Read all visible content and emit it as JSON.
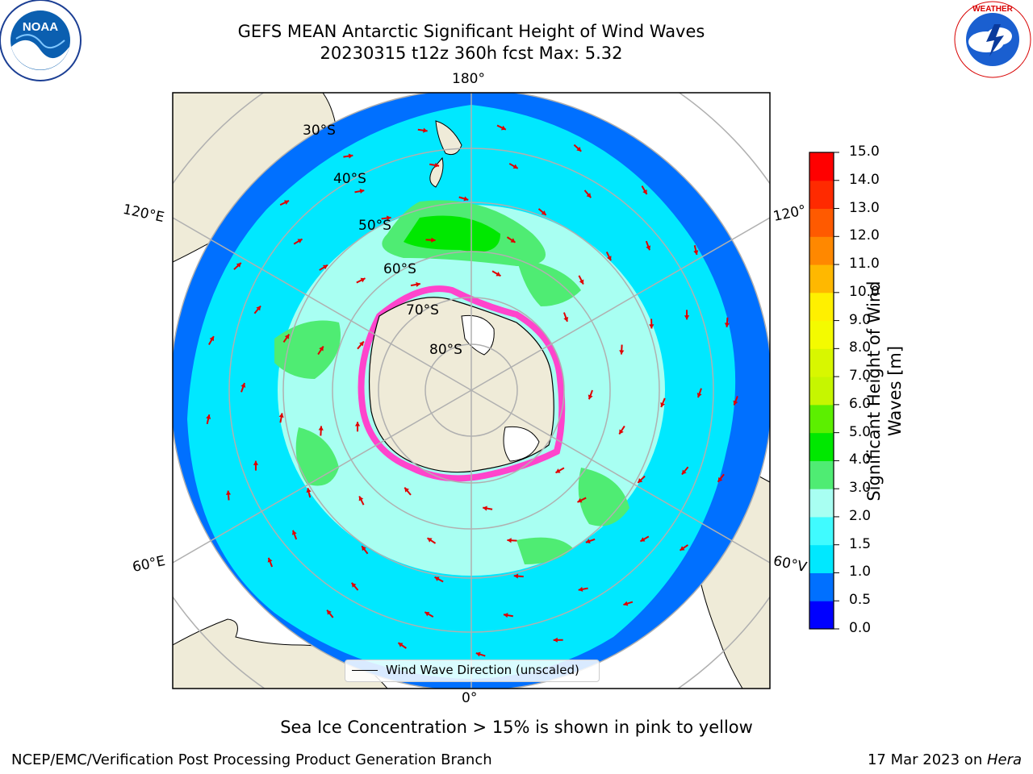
{
  "title": {
    "line1": "GEFS MEAN Antarctic Significant Height of Wind Waves",
    "line2": "20230315 t12z 360h fcst   Max: 5.32"
  },
  "logos": {
    "left": {
      "name": "noaa-logo",
      "text": "NOAA"
    },
    "right": {
      "name": "national-weather-service-logo",
      "text": "NATIONAL WEATHER SERVICE"
    }
  },
  "map": {
    "projection": "south-polar-stereographic",
    "longitude_labels": {
      "top": "180°",
      "bottom": "0°",
      "upper_left": "120°E",
      "upper_right": "120°",
      "lower_left": "60°E",
      "lower_right": "60°V"
    },
    "latitude_labels": [
      "30°S",
      "40°S",
      "50°S",
      "60°S",
      "70°S",
      "80°S"
    ],
    "legend": "Wind Wave Direction (unscaled)",
    "colors": {
      "land": "#efebd8",
      "ice_land": "#ffffff",
      "arrow": "#e00000",
      "graticule": "#b0b0b0"
    }
  },
  "colorbar": {
    "label": "Significant Height of Wind Waves [m]",
    "ticks": [
      "15.0",
      "14.0",
      "13.0",
      "12.0",
      "11.0",
      "10.0",
      "9.0",
      "8.0",
      "7.0",
      "6.0",
      "5.0",
      "4.0",
      "3.0",
      "2.0",
      "1.5",
      "1.0",
      "0.5",
      "0.0"
    ],
    "bins": [
      {
        "range": "0.0-0.5",
        "color": "#0000ff"
      },
      {
        "range": "0.5-1.0",
        "color": "#0070ff"
      },
      {
        "range": "1.0-1.5",
        "color": "#00e8ff"
      },
      {
        "range": "1.5-2.0",
        "color": "#40fbff"
      },
      {
        "range": "2.0-3.0",
        "color": "#a8fff2"
      },
      {
        "range": "3.0-4.0",
        "color": "#4fec73"
      },
      {
        "range": "4.0-5.0",
        "color": "#00e800"
      },
      {
        "range": "5.0-6.0",
        "color": "#5cef00"
      },
      {
        "range": "6.0-7.0",
        "color": "#c6f600"
      },
      {
        "range": "7.0-8.0",
        "color": "#d8f700"
      },
      {
        "range": "8.0-9.0",
        "color": "#f4fb00"
      },
      {
        "range": "9.0-10.0",
        "color": "#fff000"
      },
      {
        "range": "10.0-11.0",
        "color": "#ffb800"
      },
      {
        "range": "11.0-12.0",
        "color": "#ff8800"
      },
      {
        "range": "12.0-13.0",
        "color": "#ff5a00"
      },
      {
        "range": "13.0-14.0",
        "color": "#ff2a00"
      },
      {
        "range": "14.0-15.0",
        "color": "#ff0000"
      }
    ]
  },
  "note": "Sea Ice Concentration > 15% is shown in pink to yellow",
  "footer": {
    "credit": "NCEP/EMC/Verification Post Processing Product Generation Branch",
    "date": "17 Mar 2023 on ",
    "host": "Hera"
  }
}
